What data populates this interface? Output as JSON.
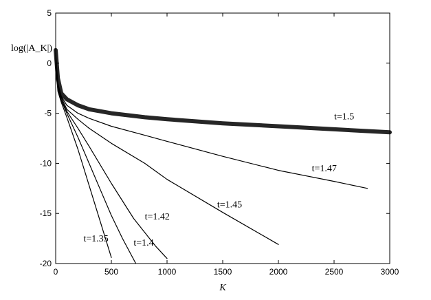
{
  "chart_data": {
    "type": "line",
    "title": "",
    "xlabel": "K",
    "ylabel": "log(|A_K|)",
    "xlim": [
      0,
      3000
    ],
    "ylim": [
      -20,
      5
    ],
    "xticks": [
      "0",
      "500",
      "1000",
      "1500",
      "2000",
      "2500",
      "3000"
    ],
    "yticks": [
      "5",
      "0",
      "-5",
      "-10",
      "-15",
      "-20"
    ],
    "grid": false,
    "series": [
      {
        "name": "t=1.5",
        "style": "band",
        "color": "#000000",
        "x": [
          0,
          20,
          50,
          100,
          200,
          300,
          500,
          800,
          1000,
          1500,
          2000,
          2500,
          3000
        ],
        "y": [
          1.3,
          -1.5,
          -3.0,
          -3.6,
          -4.2,
          -4.6,
          -5.0,
          -5.4,
          -5.6,
          -6.0,
          -6.3,
          -6.6,
          -6.9
        ]
      },
      {
        "name": "t=1.47",
        "style": "line",
        "color": "#000000",
        "x": [
          0,
          20,
          50,
          100,
          200,
          300,
          500,
          800,
          1000,
          1500,
          2000,
          2500,
          2800
        ],
        "y": [
          1.0,
          -2.0,
          -3.3,
          -4.2,
          -5.0,
          -5.5,
          -6.3,
          -7.2,
          -7.8,
          -9.3,
          -10.7,
          -11.8,
          -12.5
        ]
      },
      {
        "name": "t=1.45",
        "style": "line",
        "color": "#000000",
        "x": [
          0,
          20,
          50,
          100,
          200,
          300,
          500,
          800,
          1000,
          1500,
          2000
        ],
        "y": [
          0.8,
          -2.3,
          -3.4,
          -4.6,
          -5.6,
          -6.5,
          -8.0,
          -10.0,
          -11.6,
          -14.9,
          -18.1
        ]
      },
      {
        "name": "t=1.42",
        "style": "line",
        "color": "#000000",
        "x": [
          0,
          20,
          50,
          100,
          200,
          300,
          500,
          700,
          900,
          1000
        ],
        "y": [
          0.5,
          -2.5,
          -3.6,
          -4.8,
          -6.5,
          -8.3,
          -12.0,
          -15.5,
          -18.3,
          -19.5
        ]
      },
      {
        "name": "t=1.4",
        "style": "line",
        "color": "#000000",
        "x": [
          0,
          20,
          50,
          100,
          200,
          300,
          400,
          500,
          600,
          720
        ],
        "y": [
          0.3,
          -2.6,
          -3.7,
          -5.0,
          -7.4,
          -10.0,
          -12.6,
          -15.2,
          -17.5,
          -20.0
        ]
      },
      {
        "name": "t=1.35",
        "style": "line",
        "color": "#000000",
        "x": [
          0,
          20,
          50,
          100,
          200,
          300,
          400,
          450,
          500
        ],
        "y": [
          0.0,
          -2.8,
          -3.9,
          -5.4,
          -8.6,
          -12.2,
          -15.8,
          -17.6,
          -19.4
        ]
      }
    ],
    "annotations": [
      {
        "text": "t=1.5",
        "x": 2500,
        "y": -5.6
      },
      {
        "text": "t=1.47",
        "x": 2300,
        "y": -10.8
      },
      {
        "text": "t=1.45",
        "x": 1450,
        "y": -14.4
      },
      {
        "text": "t=1.42",
        "x": 800,
        "y": -15.6
      },
      {
        "text": "t=1.4",
        "x": 700,
        "y": -18.2
      },
      {
        "text": "t=1.35",
        "x": 250,
        "y": -17.8
      }
    ]
  }
}
